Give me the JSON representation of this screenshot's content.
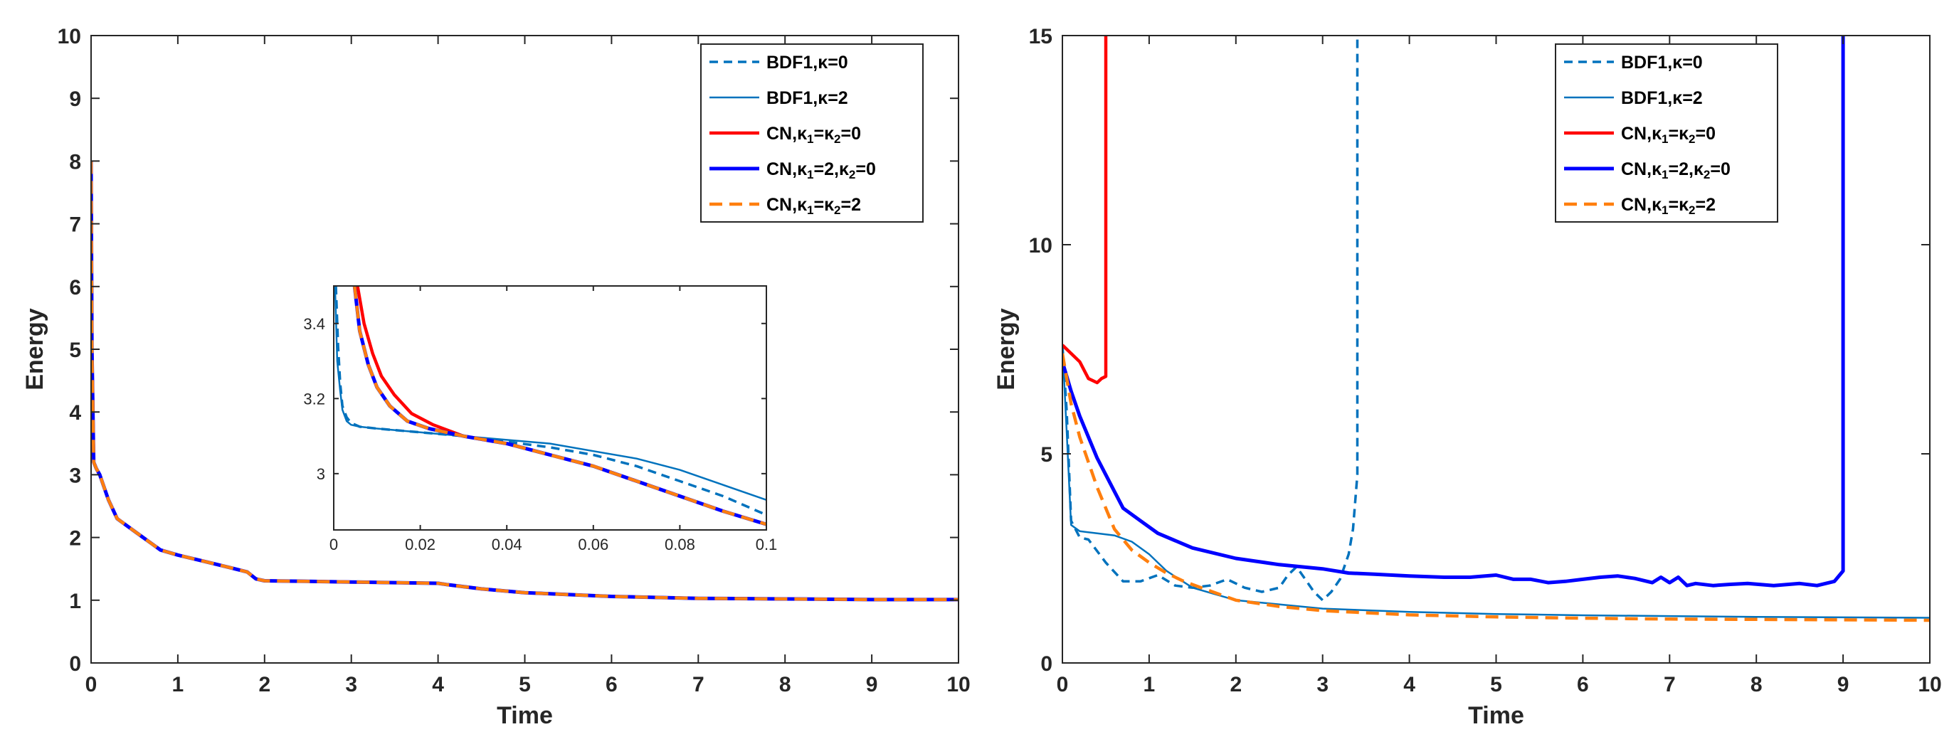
{
  "colors": {
    "bdf1": "#0072BD",
    "cn0": "#FF0000",
    "cn20": "#0000FF",
    "cn22": "#FF7F0E",
    "axis": "#262626"
  },
  "chart_data": [
    {
      "type": "line",
      "xlabel": "Time",
      "ylabel": "Energy",
      "xlim": [
        0,
        10
      ],
      "ylim": [
        0,
        10
      ],
      "xticks": [
        0,
        1,
        2,
        3,
        4,
        5,
        6,
        7,
        8,
        9,
        10
      ],
      "yticks": [
        0,
        1,
        2,
        3,
        4,
        5,
        6,
        7,
        8,
        9,
        10
      ],
      "legend": [
        {
          "key": "bdf1_k0",
          "pre": "BDF1,",
          "sym": "κ",
          "s1": "",
          "mid": "=0",
          "sym2": "",
          "s2": "",
          "post": ""
        },
        {
          "key": "bdf1_k2",
          "pre": "BDF1,",
          "sym": "κ",
          "s1": "",
          "mid": "=2",
          "sym2": "",
          "s2": "",
          "post": ""
        },
        {
          "key": "cn_k0",
          "pre": "CN,",
          "sym": "κ",
          "s1": "1",
          "mid": "=",
          "sym2": "κ",
          "s2": "2",
          "post": "=0"
        },
        {
          "key": "cn_k20",
          "pre": "CN,",
          "sym": "κ",
          "s1": "1",
          "mid": "=2,",
          "sym2": "κ",
          "s2": "2",
          "post": "=0"
        },
        {
          "key": "cn_k22",
          "pre": "CN,",
          "sym": "κ",
          "s1": "1",
          "mid": "=",
          "sym2": "κ",
          "s2": "2",
          "post": "=2"
        }
      ],
      "series": [
        {
          "key": "bdf1_k0",
          "x": [
            0,
            0.01,
            0.03,
            0.06,
            0.1,
            0.2,
            0.3,
            0.5,
            0.7,
            0.8,
            1.0,
            1.3,
            1.6,
            1.8,
            1.9,
            2.0,
            2.5,
            3,
            3.5,
            4,
            4.1,
            4.5,
            5,
            6,
            7,
            8,
            9,
            10
          ],
          "y": [
            8.0,
            5.0,
            3.2,
            3.1,
            3.0,
            2.6,
            2.3,
            2.1,
            1.9,
            1.8,
            1.72,
            1.62,
            1.52,
            1.45,
            1.34,
            1.31,
            1.3,
            1.29,
            1.28,
            1.27,
            1.25,
            1.18,
            1.12,
            1.06,
            1.03,
            1.02,
            1.01,
            1.01
          ]
        },
        {
          "key": "bdf1_k2",
          "x": [
            0,
            0.01,
            0.03,
            0.06,
            0.1,
            0.2,
            0.3,
            0.5,
            0.7,
            0.8,
            1.0,
            1.3,
            1.6,
            1.8,
            1.9,
            2.0,
            2.5,
            3,
            3.5,
            4,
            4.1,
            4.5,
            5,
            6,
            7,
            8,
            9,
            10
          ],
          "y": [
            8.0,
            5.0,
            3.2,
            3.1,
            3.0,
            2.6,
            2.3,
            2.1,
            1.9,
            1.8,
            1.72,
            1.62,
            1.52,
            1.45,
            1.34,
            1.31,
            1.3,
            1.29,
            1.28,
            1.27,
            1.25,
            1.18,
            1.12,
            1.06,
            1.03,
            1.02,
            1.01,
            1.01
          ]
        },
        {
          "key": "cn_k0",
          "x": [
            0,
            0.01,
            0.03,
            0.06,
            0.1,
            0.2,
            0.3,
            0.5,
            0.7,
            0.8,
            1.0,
            1.3,
            1.6,
            1.8,
            1.9,
            2.0,
            2.5,
            3,
            3.5,
            4,
            4.1,
            4.5,
            5,
            6,
            7,
            8,
            9,
            10
          ],
          "y": [
            8.0,
            5.0,
            3.2,
            3.1,
            3.0,
            2.6,
            2.3,
            2.1,
            1.9,
            1.8,
            1.72,
            1.62,
            1.52,
            1.45,
            1.34,
            1.31,
            1.3,
            1.29,
            1.28,
            1.27,
            1.25,
            1.18,
            1.12,
            1.06,
            1.03,
            1.02,
            1.01,
            1.01
          ]
        },
        {
          "key": "cn_k20",
          "x": [
            0,
            0.01,
            0.03,
            0.06,
            0.1,
            0.2,
            0.3,
            0.5,
            0.7,
            0.8,
            1.0,
            1.3,
            1.6,
            1.8,
            1.9,
            2.0,
            2.5,
            3,
            3.5,
            4,
            4.1,
            4.5,
            5,
            6,
            7,
            8,
            9,
            10
          ],
          "y": [
            8.0,
            5.0,
            3.2,
            3.1,
            3.0,
            2.6,
            2.3,
            2.1,
            1.9,
            1.8,
            1.72,
            1.62,
            1.52,
            1.45,
            1.34,
            1.31,
            1.3,
            1.29,
            1.28,
            1.27,
            1.25,
            1.18,
            1.12,
            1.06,
            1.03,
            1.02,
            1.01,
            1.01
          ]
        },
        {
          "key": "cn_k22",
          "x": [
            0,
            0.01,
            0.03,
            0.06,
            0.1,
            0.2,
            0.3,
            0.5,
            0.7,
            0.8,
            1.0,
            1.3,
            1.6,
            1.8,
            1.9,
            2.0,
            2.5,
            3,
            3.5,
            4,
            4.1,
            4.5,
            5,
            6,
            7,
            8,
            9,
            10
          ],
          "y": [
            8.0,
            5.0,
            3.2,
            3.1,
            3.0,
            2.6,
            2.3,
            2.1,
            1.9,
            1.8,
            1.72,
            1.62,
            1.52,
            1.45,
            1.34,
            1.31,
            1.3,
            1.29,
            1.28,
            1.27,
            1.25,
            1.18,
            1.12,
            1.06,
            1.03,
            1.02,
            1.01,
            1.01
          ]
        }
      ],
      "inset": {
        "xlim": [
          0,
          0.1
        ],
        "ylim": [
          2.85,
          3.5
        ],
        "xticks": [
          0,
          0.02,
          0.04,
          0.06,
          0.08,
          0.1
        ],
        "xticklabels": [
          "0",
          "0.02",
          "0.04",
          "0.06",
          "0.08",
          "0.1"
        ],
        "yticks": [
          3,
          3.2,
          3.4
        ],
        "yticklabels": [
          "3",
          "3.2",
          "3.4"
        ],
        "series": [
          {
            "key": "bdf1_k0",
            "x": [
              0.0005,
              0.001,
              0.0015,
              0.002,
              0.003,
              0.004,
              0.006,
              0.01,
              0.02,
              0.03,
              0.04,
              0.05,
              0.06,
              0.07,
              0.08,
              0.09,
              0.1
            ],
            "y": [
              3.5,
              3.34,
              3.24,
              3.18,
              3.15,
              3.135,
              3.125,
              3.12,
              3.11,
              3.1,
              3.085,
              3.07,
              3.05,
              3.02,
              2.98,
              2.94,
              2.89
            ]
          },
          {
            "key": "bdf1_k2",
            "x": [
              0.0003,
              0.0008,
              0.0015,
              0.002,
              0.003,
              0.004,
              0.006,
              0.01,
              0.02,
              0.03,
              0.04,
              0.05,
              0.06,
              0.07,
              0.08,
              0.09,
              0.1
            ],
            "y": [
              3.5,
              3.3,
              3.22,
              3.17,
              3.14,
              3.13,
              3.125,
              3.12,
              3.11,
              3.1,
              3.09,
              3.08,
              3.06,
              3.04,
              3.01,
              2.97,
              2.93
            ]
          },
          {
            "key": "cn_k0",
            "x": [
              0.0055,
              0.007,
              0.009,
              0.011,
              0.014,
              0.018,
              0.023,
              0.03,
              0.04,
              0.05,
              0.06,
              0.07,
              0.08,
              0.09,
              0.1
            ],
            "y": [
              3.5,
              3.4,
              3.32,
              3.26,
              3.21,
              3.16,
              3.13,
              3.1,
              3.08,
              3.05,
              3.02,
              2.98,
              2.94,
              2.9,
              2.865
            ]
          },
          {
            "key": "cn_k20",
            "x": [
              0.0048,
              0.006,
              0.008,
              0.01,
              0.013,
              0.017,
              0.022,
              0.03,
              0.04,
              0.05,
              0.06,
              0.07,
              0.08,
              0.09,
              0.1
            ],
            "y": [
              3.5,
              3.38,
              3.29,
              3.23,
              3.18,
              3.14,
              3.12,
              3.1,
              3.08,
              3.05,
              3.02,
              2.98,
              2.94,
              2.9,
              2.865
            ]
          },
          {
            "key": "cn_k22",
            "x": [
              0.0048,
              0.006,
              0.008,
              0.01,
              0.013,
              0.017,
              0.022,
              0.03,
              0.04,
              0.05,
              0.06,
              0.07,
              0.08,
              0.09,
              0.1
            ],
            "y": [
              3.5,
              3.38,
              3.29,
              3.23,
              3.18,
              3.14,
              3.12,
              3.1,
              3.08,
              3.05,
              3.02,
              2.98,
              2.94,
              2.9,
              2.865
            ]
          }
        ]
      }
    },
    {
      "type": "line",
      "xlabel": "Time",
      "ylabel": "Energy",
      "xlim": [
        0,
        10
      ],
      "ylim": [
        0,
        15
      ],
      "xticks": [
        0,
        1,
        2,
        3,
        4,
        5,
        6,
        7,
        8,
        9,
        10
      ],
      "yticks": [
        0,
        5,
        10,
        15
      ],
      "legend": [
        {
          "key": "bdf1_k0",
          "pre": "BDF1,",
          "sym": "κ",
          "s1": "",
          "mid": "=0",
          "sym2": "",
          "s2": "",
          "post": ""
        },
        {
          "key": "bdf1_k2",
          "pre": "BDF1,",
          "sym": "κ",
          "s1": "",
          "mid": "=2",
          "sym2": "",
          "s2": "",
          "post": ""
        },
        {
          "key": "cn_k0",
          "pre": "CN,",
          "sym": "κ",
          "s1": "1",
          "mid": "=",
          "sym2": "κ",
          "s2": "2",
          "post": "=0"
        },
        {
          "key": "cn_k20",
          "pre": "CN,",
          "sym": "κ",
          "s1": "1",
          "mid": "=2,",
          "sym2": "κ",
          "s2": "2",
          "post": "=0"
        },
        {
          "key": "cn_k22",
          "pre": "CN,",
          "sym": "κ",
          "s1": "1",
          "mid": "=",
          "sym2": "κ",
          "s2": "2",
          "post": "=2"
        }
      ],
      "series": [
        {
          "key": "bdf1_k0",
          "x": [
            0,
            0.05,
            0.1,
            0.2,
            0.3,
            0.5,
            0.7,
            0.9,
            1.1,
            1.3,
            1.5,
            1.7,
            1.9,
            2.1,
            2.3,
            2.5,
            2.6,
            2.7,
            2.8,
            2.9,
            3.0,
            3.1,
            3.2,
            3.3,
            3.35,
            3.4,
            3.4
          ],
          "y": [
            7.6,
            6,
            3.4,
            3.0,
            2.95,
            2.4,
            1.95,
            1.95,
            2.1,
            1.85,
            1.8,
            1.85,
            2.0,
            1.8,
            1.7,
            1.8,
            2.1,
            2.3,
            2.0,
            1.7,
            1.5,
            1.7,
            2.0,
            2.6,
            3.2,
            4.5,
            15
          ]
        },
        {
          "key": "bdf1_k2",
          "x": [
            0,
            0.05,
            0.1,
            0.2,
            0.4,
            0.6,
            0.8,
            1.0,
            1.2,
            1.5,
            2,
            3,
            4,
            5,
            6,
            7,
            8,
            9,
            10
          ],
          "y": [
            7.6,
            5.5,
            3.3,
            3.15,
            3.1,
            3.05,
            2.9,
            2.6,
            2.2,
            1.8,
            1.5,
            1.3,
            1.22,
            1.17,
            1.14,
            1.12,
            1.1,
            1.09,
            1.08
          ]
        },
        {
          "key": "cn_k0",
          "x": [
            0,
            0.1,
            0.2,
            0.3,
            0.4,
            0.45,
            0.5,
            0.5
          ],
          "y": [
            7.6,
            7.4,
            7.2,
            6.8,
            6.7,
            6.8,
            6.85,
            15
          ]
        },
        {
          "key": "cn_k20",
          "x": [
            0,
            0.1,
            0.2,
            0.4,
            0.6,
            0.7,
            0.9,
            1.1,
            1.5,
            2,
            2.5,
            3,
            3.3,
            3.6,
            4,
            4.4,
            4.7,
            5,
            5.2,
            5.4,
            5.6,
            5.8,
            6,
            6.2,
            6.4,
            6.6,
            6.8,
            6.9,
            7.0,
            7.1,
            7.2,
            7.3,
            7.5,
            7.7,
            7.9,
            8.2,
            8.5,
            8.7,
            8.9,
            9.0,
            9.0
          ],
          "y": [
            7.2,
            6.5,
            5.9,
            4.9,
            4.1,
            3.7,
            3.4,
            3.1,
            2.75,
            2.5,
            2.35,
            2.25,
            2.15,
            2.12,
            2.08,
            2.05,
            2.05,
            2.1,
            2.0,
            2.0,
            1.92,
            1.95,
            2.0,
            2.05,
            2.08,
            2.02,
            1.92,
            2.05,
            1.92,
            2.05,
            1.85,
            1.9,
            1.85,
            1.88,
            1.9,
            1.85,
            1.9,
            1.85,
            1.95,
            2.2,
            15
          ]
        },
        {
          "key": "cn_k22",
          "x": [
            0,
            0.1,
            0.2,
            0.4,
            0.6,
            0.8,
            1.0,
            1.2,
            1.4,
            1.6,
            1.8,
            2,
            2.5,
            3,
            4,
            5,
            6,
            7,
            8,
            9,
            10
          ],
          "y": [
            7.4,
            6.2,
            5.4,
            4.2,
            3.2,
            2.7,
            2.4,
            2.15,
            1.95,
            1.8,
            1.65,
            1.5,
            1.35,
            1.25,
            1.15,
            1.1,
            1.07,
            1.05,
            1.04,
            1.03,
            1.02
          ]
        }
      ]
    }
  ]
}
